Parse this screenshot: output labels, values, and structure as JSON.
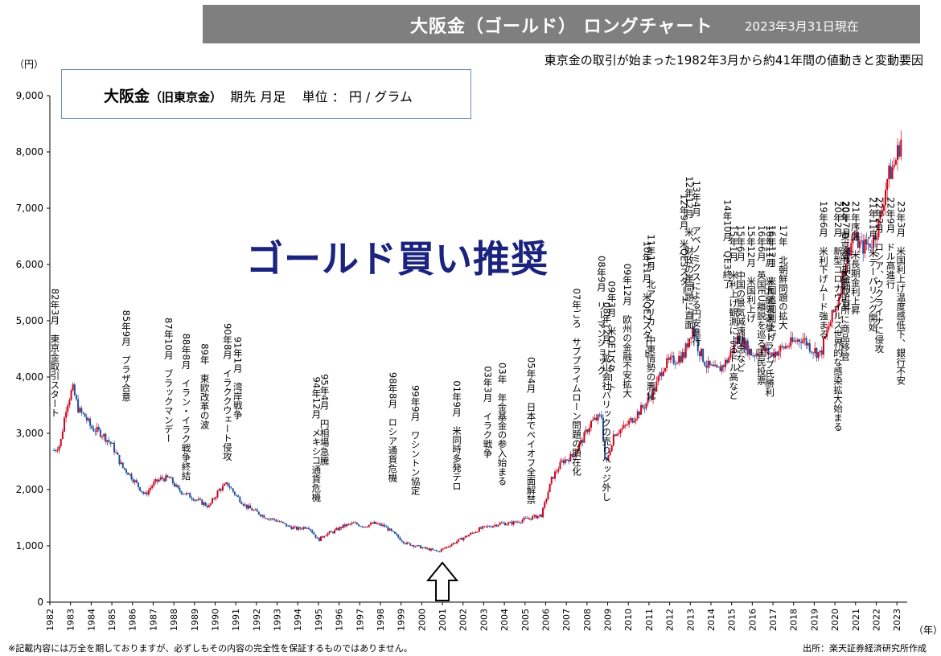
{
  "header": {
    "title": "大阪金（ゴールド） ロングチャート",
    "date": "2023年3月31日現在",
    "subtitle": "東京金の取引が始まった1982年3月から約41年間の値動きと変動要因"
  },
  "unit_box": {
    "name": "大阪金",
    "old_name": "（旧東京金）",
    "spec": "期先 月足",
    "unit": "単位 ： 円 / グラム"
  },
  "recommend_text": "ゴールド買い推奨",
  "footnote": "※記載内容には万全を期しておりますが、必ずしもその内容の完全性を保証するものではありません。",
  "source": "出所：楽天証券経済研究所作成",
  "colors": {
    "up": "#d0021b",
    "down": "#1f4e9e",
    "title_bg": "#7f7f7f",
    "recommend": "#1a237e"
  },
  "chart_data": {
    "type": "line",
    "y_unit_label": "（円）",
    "x_unit_label": "（年）",
    "ylim": [
      0,
      9000
    ],
    "xlim": [
      1982,
      2023.5
    ],
    "y_ticks": [
      "0",
      "1,000",
      "2,000",
      "3,000",
      "4,000",
      "5,000",
      "6,000",
      "7,000",
      "8,000",
      "9,000"
    ],
    "x_ticks": [
      "1982",
      "1983",
      "1984",
      "1985",
      "1986",
      "1987",
      "1988",
      "1989",
      "1990",
      "1991",
      "1992",
      "1993",
      "1994",
      "1995",
      "1996",
      "1997",
      "1998",
      "1999",
      "2000",
      "2001",
      "2002",
      "2003",
      "2004",
      "2005",
      "2006",
      "2007",
      "2008",
      "2009",
      "2010",
      "2011",
      "2012",
      "2013",
      "2014",
      "2015",
      "2016",
      "2017",
      "2018",
      "2019",
      "2020",
      "2021",
      "2022",
      "2023"
    ],
    "series": [
      {
        "x": [
          1982.2,
          1982.5,
          1982.8,
          1983.1,
          1983.4,
          1983.7,
          1984.0,
          1984.5,
          1985.0,
          1985.5,
          1985.8,
          1986.2,
          1986.6,
          1987.0,
          1987.4,
          1987.8,
          1988.2,
          1988.7,
          1989.2,
          1989.7,
          1990.2,
          1990.6,
          1991.0,
          1991.5,
          1992.0,
          1992.5,
          1993.0,
          1993.5,
          1994.0,
          1994.5,
          1995.0,
          1995.3,
          1995.7,
          1996.2,
          1996.7,
          1997.2,
          1997.7,
          1998.2,
          1998.7,
          1999.2,
          1999.7,
          2000.2,
          2000.8,
          2001.3,
          2001.8,
          2002.3,
          2002.8,
          2003.3,
          2003.8,
          2004.3,
          2004.8,
          2005.3,
          2005.8,
          2006.3,
          2006.8,
          2007.3,
          2007.8,
          2008.2,
          2008.7,
          2008.9,
          2009.3,
          2009.8,
          2010.3,
          2010.8,
          2011.3,
          2011.7,
          2012.2,
          2012.7,
          2013.1,
          2013.4,
          2013.8,
          2014.3,
          2014.8,
          2015.3,
          2015.6,
          2016.0,
          2016.5,
          2016.9,
          2017.4,
          2017.9,
          2018.4,
          2018.9,
          2019.3,
          2019.7,
          2020.1,
          2020.6,
          2020.9,
          2021.3,
          2021.8,
          2022.2,
          2022.5,
          2022.9,
          2023.25
        ],
        "values": [
          2700,
          2800,
          3500,
          3800,
          3400,
          3300,
          3100,
          3000,
          2800,
          2400,
          2300,
          2100,
          1900,
          2100,
          2200,
          2200,
          2000,
          1900,
          1800,
          1700,
          2000,
          2100,
          1900,
          1700,
          1600,
          1500,
          1450,
          1350,
          1300,
          1350,
          1100,
          1200,
          1250,
          1350,
          1400,
          1350,
          1400,
          1350,
          1200,
          1050,
          1000,
          950,
          900,
          1000,
          1100,
          1200,
          1300,
          1350,
          1400,
          1400,
          1450,
          1500,
          1550,
          2200,
          2500,
          2600,
          2900,
          3200,
          3300,
          2400,
          3000,
          3100,
          3300,
          3500,
          3800,
          4200,
          4300,
          4400,
          4900,
          4500,
          4200,
          4100,
          4300,
          4700,
          4600,
          4400,
          4500,
          4400,
          4500,
          4600,
          4700,
          4500,
          4400,
          4900,
          5300,
          6200,
          6500,
          6300,
          6400,
          6800,
          7500,
          7800,
          8300
        ]
      }
    ],
    "annotations": [
      {
        "year": 1982.25,
        "text": "82年3月　東京金取引スタート"
      },
      {
        "year": 1985.7,
        "text": "85年9月　プラザ合意"
      },
      {
        "year": 1987.75,
        "text": "87年10月　ブラックマンデー"
      },
      {
        "year": 1988.6,
        "text": "88年8月　イラン・イラク戦争終結"
      },
      {
        "year": 1989.5,
        "text": "89年　東欧改革の波"
      },
      {
        "year": 1990.6,
        "text": "90年8月　イラククウェート侵攻"
      },
      {
        "year": 1991.1,
        "text": "91年1月　湾岸戦争"
      },
      {
        "year": 1994.9,
        "text": "94年12月　メキシコ通貨危機"
      },
      {
        "year": 1995.3,
        "text": "95年4月　円相場急騰"
      },
      {
        "year": 1998.6,
        "text": "98年8月　ロシア通貨危機"
      },
      {
        "year": 1999.7,
        "text": "99年9月　ワシントン協定"
      },
      {
        "year": 2001.7,
        "text": "01年9月　米同時多発テロ"
      },
      {
        "year": 2003.2,
        "text": "03年3月　イラク戦争"
      },
      {
        "year": 2003.9,
        "text": "03年　年金基金の参入始まる"
      },
      {
        "year": 2005.3,
        "text": "05年4月　日本でペイオフ全面解禁"
      },
      {
        "year": 2007.5,
        "text": "07年ごろ　サブプライムローン問題の顕在化"
      },
      {
        "year": 2008.7,
        "text": "08年9月　リーマンショック"
      },
      {
        "year": 2008.95,
        "text": "08年12月　鉱山会社バリックの売りヘッジ外し"
      },
      {
        "year": 2009.2,
        "text": "09年3月　米QE1スタート"
      },
      {
        "year": 2009.95,
        "text": "09年12月　欧州の金融不安拡大"
      },
      {
        "year": 2010.9,
        "text": "10年11月　米QE2スタート"
      },
      {
        "year": 2011.1,
        "text": "11年1月　北アフリカ・中東情勢の悪化"
      },
      {
        "year": 2012.7,
        "text": "12年9月　米QE3スタート"
      },
      {
        "year": 2012.95,
        "text": "12年12月　米、財政の崖問題に直面"
      },
      {
        "year": 2013.3,
        "text": "13年4月　アベノミクスによる円安進行"
      },
      {
        "year": 2014.8,
        "text": "14年10月　QE3終了"
      },
      {
        "year": 2015.1,
        "text": "15年1月　米利上げ観測によるドル高など"
      },
      {
        "year": 2015.45,
        "text": "15年6月　中国の景気減速懸念など"
      },
      {
        "year": 2015.95,
        "text": "15年12月　米国利上げ"
      },
      {
        "year": 2016.45,
        "text": "16年6月　英国EU離脱を巡る国民投票"
      },
      {
        "year": 2016.85,
        "text": "16年11月　米大統領選挙トランプ氏勝利"
      },
      {
        "year": 2016.95,
        "text": "16年12月　米国追加利上げ"
      },
      {
        "year": 2017.5,
        "text": "17年　北朝鮮問題の拡大"
      },
      {
        "year": 2019.45,
        "text": "19年6月　米利下げムード強まる"
      },
      {
        "year": 2020.15,
        "text": "20年2月　新型コロナウイルス世界的な感染拡大始まる"
      },
      {
        "year": 2020.5,
        "text": "20年　東京金、大阪取引所に商品移管"
      },
      {
        "year": 2020.55,
        "text": "20年7月　米長期金利上昇"
      },
      {
        "year": 2021.0,
        "text": "21年序盤　米長期金利上昇"
      },
      {
        "year": 2021.85,
        "text": "21年11月　米テーパリング開始"
      },
      {
        "year": 2022.15,
        "text": "22年2月　ロシア、ウクライナに侵攻"
      },
      {
        "year": 2022.7,
        "text": "22年9月　ドル高進行"
      },
      {
        "year": 2023.2,
        "text": "23年3月　米国利上げ温度感低下、銀行不安"
      }
    ],
    "arrow": {
      "year": 2001.0,
      "direction": "up"
    },
    "grid": false,
    "legend": "none"
  }
}
